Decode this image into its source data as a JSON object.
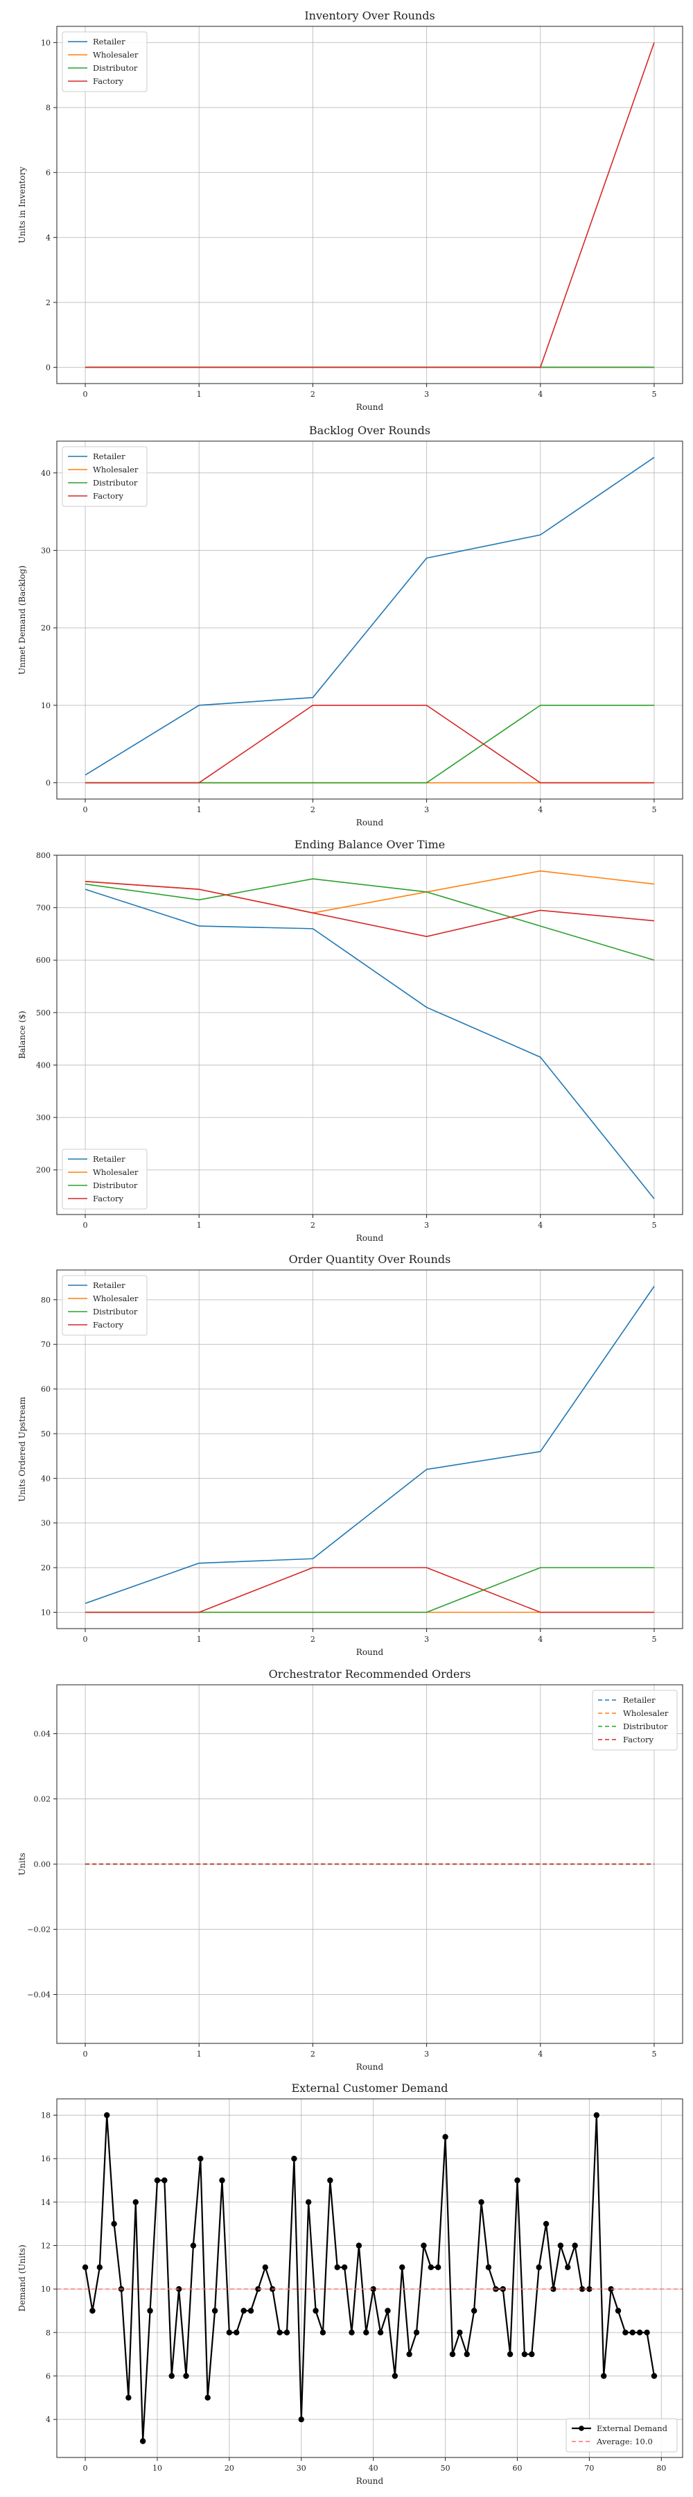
{
  "chart_data": [
    {
      "type": "line",
      "title": "Inventory Over Rounds",
      "xlabel": "Round",
      "ylabel": "Units in Inventory",
      "x": [
        0,
        1,
        2,
        3,
        4,
        5
      ],
      "xlim": [
        -0.25,
        5.25
      ],
      "ylim": [
        -0.5,
        10.5
      ],
      "xticks": [
        0,
        1,
        2,
        3,
        4,
        5
      ],
      "xtick_labels": [
        "0",
        "1",
        "2",
        "3",
        "4",
        "5"
      ],
      "yticks": [
        0,
        2,
        4,
        6,
        8,
        10
      ],
      "ytick_labels": [
        "0",
        "2",
        "4",
        "6",
        "8",
        "10"
      ],
      "grid": true,
      "legend": "top-left",
      "series": [
        {
          "name": "Retailer",
          "color": "#1f77b4",
          "values": [
            0,
            0,
            0,
            0,
            0,
            0
          ]
        },
        {
          "name": "Wholesaler",
          "color": "#ff7f0e",
          "values": [
            0,
            0,
            0,
            0,
            0,
            0
          ]
        },
        {
          "name": "Distributor",
          "color": "#2ca02c",
          "values": [
            0,
            0,
            0,
            0,
            0,
            0
          ]
        },
        {
          "name": "Factory",
          "color": "#d62728",
          "values": [
            0,
            0,
            0,
            0,
            0,
            10
          ]
        }
      ]
    },
    {
      "type": "line",
      "title": "Backlog Over Rounds",
      "xlabel": "Round",
      "ylabel": "Unmet Demand (Backlog)",
      "x": [
        0,
        1,
        2,
        3,
        4,
        5
      ],
      "xlim": [
        -0.25,
        5.25
      ],
      "ylim": [
        -2.1,
        44.1
      ],
      "xticks": [
        0,
        1,
        2,
        3,
        4,
        5
      ],
      "xtick_labels": [
        "0",
        "1",
        "2",
        "3",
        "4",
        "5"
      ],
      "yticks": [
        0,
        10,
        20,
        30,
        40
      ],
      "ytick_labels": [
        "0",
        "10",
        "20",
        "30",
        "40"
      ],
      "grid": true,
      "legend": "top-left",
      "series": [
        {
          "name": "Retailer",
          "color": "#1f77b4",
          "values": [
            1,
            10,
            11,
            29,
            32,
            42
          ]
        },
        {
          "name": "Wholesaler",
          "color": "#ff7f0e",
          "values": [
            0,
            0,
            0,
            0,
            0,
            0
          ]
        },
        {
          "name": "Distributor",
          "color": "#2ca02c",
          "values": [
            0,
            0,
            0,
            0,
            10,
            10
          ]
        },
        {
          "name": "Factory",
          "color": "#d62728",
          "values": [
            0,
            0,
            10,
            10,
            0,
            0
          ]
        }
      ]
    },
    {
      "type": "line",
      "title": "Ending Balance Over Time",
      "xlabel": "Round",
      "ylabel": "Balance ($)",
      "x": [
        0,
        1,
        2,
        3,
        4,
        5
      ],
      "xlim": [
        -0.25,
        5.25
      ],
      "ylim": [
        115,
        800
      ],
      "xticks": [
        0,
        1,
        2,
        3,
        4,
        5
      ],
      "xtick_labels": [
        "0",
        "1",
        "2",
        "3",
        "4",
        "5"
      ],
      "yticks": [
        200,
        300,
        400,
        500,
        600,
        700,
        800
      ],
      "ytick_labels": [
        "200",
        "300",
        "400",
        "500",
        "600",
        "700",
        "800"
      ],
      "grid": true,
      "legend": "bottom-left",
      "series": [
        {
          "name": "Retailer",
          "color": "#1f77b4",
          "values": [
            735,
            665,
            660,
            510,
            415,
            145
          ]
        },
        {
          "name": "Wholesaler",
          "color": "#ff7f0e",
          "values": [
            750,
            735,
            690,
            730,
            770,
            745
          ]
        },
        {
          "name": "Distributor",
          "color": "#2ca02c",
          "values": [
            745,
            715,
            755,
            730,
            665,
            600
          ]
        },
        {
          "name": "Factory",
          "color": "#d62728",
          "values": [
            750,
            735,
            690,
            645,
            695,
            675
          ]
        }
      ]
    },
    {
      "type": "line",
      "title": "Order Quantity Over Rounds",
      "xlabel": "Round",
      "ylabel": "Units Ordered Upstream",
      "x": [
        0,
        1,
        2,
        3,
        4,
        5
      ],
      "xlim": [
        -0.25,
        5.25
      ],
      "ylim": [
        6.35,
        86.65
      ],
      "xticks": [
        0,
        1,
        2,
        3,
        4,
        5
      ],
      "xtick_labels": [
        "0",
        "1",
        "2",
        "3",
        "4",
        "5"
      ],
      "yticks": [
        10,
        20,
        30,
        40,
        50,
        60,
        70,
        80
      ],
      "ytick_labels": [
        "10",
        "20",
        "30",
        "40",
        "50",
        "60",
        "70",
        "80"
      ],
      "grid": true,
      "legend": "top-left",
      "series": [
        {
          "name": "Retailer",
          "color": "#1f77b4",
          "values": [
            12,
            21,
            22,
            42,
            46,
            83
          ]
        },
        {
          "name": "Wholesaler",
          "color": "#ff7f0e",
          "values": [
            10,
            10,
            10,
            10,
            10,
            10
          ]
        },
        {
          "name": "Distributor",
          "color": "#2ca02c",
          "values": [
            10,
            10,
            10,
            10,
            20,
            20
          ]
        },
        {
          "name": "Factory",
          "color": "#d62728",
          "values": [
            10,
            10,
            20,
            20,
            10,
            10
          ]
        }
      ]
    },
    {
      "type": "line",
      "title": "Orchestrator Recommended Orders",
      "xlabel": "Round",
      "ylabel": "Units",
      "x": [
        0,
        1,
        2,
        3,
        4,
        5
      ],
      "xlim": [
        -0.25,
        5.25
      ],
      "ylim": [
        -0.055,
        0.055
      ],
      "xticks": [
        0,
        1,
        2,
        3,
        4,
        5
      ],
      "xtick_labels": [
        "0",
        "1",
        "2",
        "3",
        "4",
        "5"
      ],
      "yticks": [
        -0.04,
        -0.02,
        0,
        0.02,
        0.04
      ],
      "ytick_labels": [
        "−0.04",
        "−0.02",
        "0.00",
        "0.02",
        "0.04"
      ],
      "grid": true,
      "legend": "top-right",
      "series": [
        {
          "name": "Retailer",
          "color": "#1f77b4",
          "dash": true,
          "values": [
            0,
            0,
            0,
            0,
            0,
            0
          ]
        },
        {
          "name": "Wholesaler",
          "color": "#ff7f0e",
          "dash": true,
          "values": [
            0,
            0,
            0,
            0,
            0,
            0
          ]
        },
        {
          "name": "Distributor",
          "color": "#2ca02c",
          "dash": true,
          "values": [
            0,
            0,
            0,
            0,
            0,
            0
          ]
        },
        {
          "name": "Factory",
          "color": "#d62728",
          "dash": true,
          "values": [
            0,
            0,
            0,
            0,
            0,
            0
          ]
        }
      ]
    },
    {
      "type": "line",
      "title": "External Customer Demand",
      "xlabel": "Round",
      "ylabel": "Demand (Units)",
      "x": [
        0,
        1,
        2,
        3,
        4,
        5,
        6,
        7,
        8,
        9,
        10,
        11,
        12,
        13,
        14,
        15,
        16,
        17,
        18,
        19,
        20,
        21,
        22,
        23,
        24,
        25,
        26,
        27,
        28,
        29,
        30,
        31,
        32,
        33,
        34,
        35,
        36,
        37,
        38,
        39,
        40,
        41,
        42,
        43,
        44,
        45,
        46,
        47,
        48,
        49,
        50,
        51,
        52,
        53,
        54,
        55,
        56,
        57,
        58,
        59,
        60,
        61,
        62,
        63,
        64,
        65,
        66,
        67,
        68,
        69,
        70,
        71,
        72,
        73,
        74,
        75,
        76,
        77,
        78,
        79
      ],
      "xlim": [
        -3.95,
        82.95
      ],
      "ylim": [
        2.25,
        18.75
      ],
      "xticks": [
        0,
        10,
        20,
        30,
        40,
        50,
        60,
        70,
        80
      ],
      "xtick_labels": [
        "0",
        "10",
        "20",
        "30",
        "40",
        "50",
        "60",
        "70",
        "80"
      ],
      "yticks": [
        4,
        6,
        8,
        10,
        12,
        14,
        16,
        18
      ],
      "ytick_labels": [
        "4",
        "6",
        "8",
        "10",
        "12",
        "14",
        "16",
        "18"
      ],
      "grid": true,
      "legend": "bottom-right",
      "series": [
        {
          "name": "External Demand",
          "color": "#000000",
          "marker": true,
          "values": [
            11,
            9,
            11,
            18,
            13,
            10,
            5,
            14,
            3,
            9,
            15,
            15,
            6,
            10,
            6,
            12,
            16,
            5,
            9,
            15,
            8,
            8,
            9,
            9,
            10,
            11,
            10,
            8,
            8,
            16,
            4,
            14,
            9,
            8,
            15,
            11,
            11,
            8,
            12,
            8,
            10,
            8,
            9,
            6,
            11,
            7,
            8,
            12,
            11,
            11,
            17,
            7,
            8,
            7,
            9,
            14,
            11,
            10,
            10,
            7,
            15,
            7,
            7,
            11,
            13,
            10,
            12,
            11,
            12,
            10,
            10,
            18,
            6,
            10,
            9,
            8,
            8,
            8,
            8,
            6
          ]
        },
        {
          "name": "Average: 10.0",
          "color": "#ff6b6b",
          "dash": true,
          "hline": 10.0
        }
      ]
    }
  ]
}
